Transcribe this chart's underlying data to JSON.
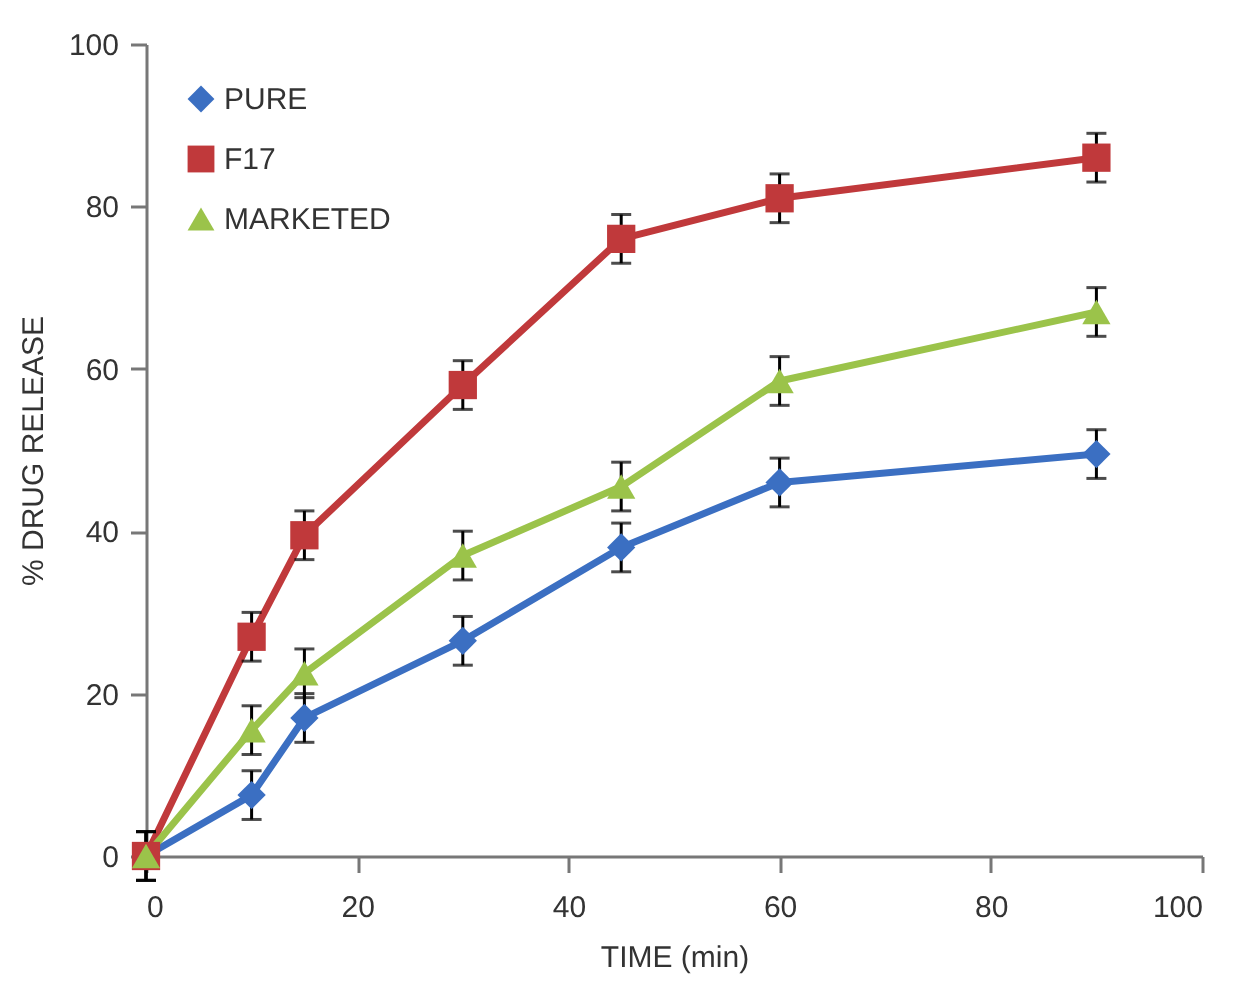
{
  "chart_data": {
    "type": "line",
    "xlabel": "TIME (min)",
    "ylabel": "% DRUG RELEASE",
    "x": [
      0,
      10,
      15,
      30,
      45,
      60,
      90
    ],
    "xlim": [
      0,
      100
    ],
    "xticks": [
      0,
      20,
      40,
      60,
      80,
      100
    ],
    "ylim": [
      0,
      100
    ],
    "yticks": [
      0,
      20,
      40,
      60,
      80,
      100
    ],
    "grid": false,
    "legend": "top left",
    "line_style": "solid",
    "series": [
      {
        "name": "PURE",
        "color": "#3b6fc2",
        "marker": "diamond",
        "values": [
          0,
          7.5,
          17,
          26.5,
          38,
          46,
          49.5
        ],
        "errors": [
          3,
          3,
          3,
          3,
          3,
          3,
          3
        ]
      },
      {
        "name": "F17",
        "color": "#c0393b",
        "marker": "square",
        "values": [
          0,
          27,
          39.5,
          58,
          76,
          81,
          86
        ],
        "errors": [
          3,
          3,
          3,
          3,
          3,
          3,
          3
        ]
      },
      {
        "name": "MARKETED",
        "color": "#9bc34a",
        "marker": "triangle",
        "values": [
          0,
          15.5,
          22.5,
          37,
          45.5,
          58.5,
          67
        ],
        "errors": [
          3,
          3,
          3,
          3,
          3,
          3,
          3
        ]
      }
    ]
  }
}
